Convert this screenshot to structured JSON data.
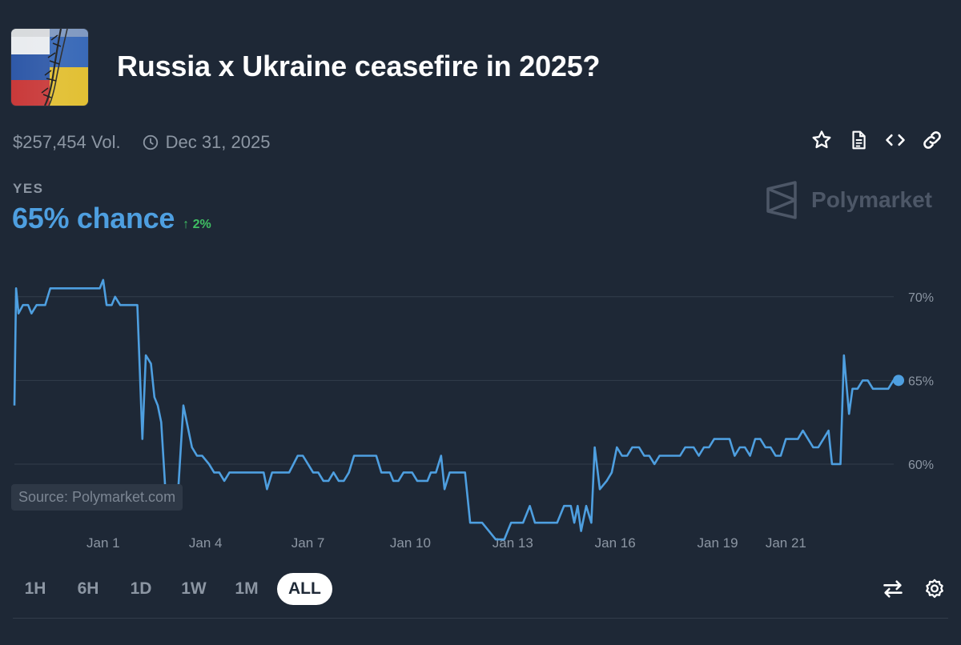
{
  "market": {
    "title": "Russia x Ukraine ceasefire in 2025?",
    "volume": "$257,454 Vol.",
    "end_date": "Dec 31, 2025"
  },
  "outcome": {
    "label": "YES",
    "chance": "65% chance",
    "delta": "2%",
    "delta_direction": "up"
  },
  "brand": {
    "name": "Polymarket"
  },
  "source": "Source: Polymarket.com",
  "icons": {
    "clock": "clock-icon",
    "actions": [
      "star-icon",
      "document-icon",
      "embed-code-icon",
      "link-icon"
    ],
    "tools": [
      "swap-arrows-icon",
      "gear-icon"
    ]
  },
  "ranges": [
    "1H",
    "6H",
    "1D",
    "1W",
    "1M",
    "ALL"
  ],
  "active_range": "ALL",
  "colors": {
    "background": "#1e2836",
    "line": "#4e9fe0",
    "delta_up": "#3fbf63",
    "muted": "#8c96a3"
  },
  "chart_data": {
    "type": "line",
    "title": "",
    "xlabel": "",
    "ylabel": "",
    "ylim": [
      54.5,
      73
    ],
    "y_ticks": [
      60,
      65,
      70
    ],
    "y_tick_labels": [
      "60%",
      "65%",
      "70%"
    ],
    "x_ticks": [
      1,
      4,
      7,
      10,
      13,
      16,
      19,
      21
    ],
    "x_tick_labels": [
      "Jan 1",
      "Jan 4",
      "Jan 7",
      "Jan 10",
      "Jan 13",
      "Jan 16",
      "Jan 19",
      "Jan 21"
    ],
    "x_unit": "day of January (fractional)",
    "grid": "horizontal",
    "series": [
      {
        "values_pct": [
          [
            -1.6,
            63.5
          ],
          [
            -1.55,
            70.5
          ],
          [
            -1.48,
            69
          ],
          [
            -1.35,
            69.5
          ],
          [
            -1.2,
            69.5
          ],
          [
            -1.1,
            69
          ],
          [
            -0.95,
            69.5
          ],
          [
            -0.7,
            69.5
          ],
          [
            -0.55,
            70.5
          ],
          [
            0.0,
            70.5
          ],
          [
            0.5,
            70.5
          ],
          [
            0.9,
            70.5
          ],
          [
            1.0,
            71
          ],
          [
            1.1,
            69.5
          ],
          [
            1.25,
            69.5
          ],
          [
            1.35,
            70
          ],
          [
            1.5,
            69.5
          ],
          [
            1.9,
            69.5
          ],
          [
            2.0,
            69.5
          ],
          [
            2.15,
            61.5
          ],
          [
            2.25,
            66.5
          ],
          [
            2.4,
            66
          ],
          [
            2.5,
            64
          ],
          [
            2.6,
            63.5
          ],
          [
            2.7,
            62.5
          ],
          [
            2.85,
            57.5
          ],
          [
            2.95,
            58
          ],
          [
            3.05,
            57.5
          ],
          [
            3.2,
            58.5
          ],
          [
            3.35,
            63.5
          ],
          [
            3.5,
            62
          ],
          [
            3.6,
            61
          ],
          [
            3.75,
            60.5
          ],
          [
            3.9,
            60.5
          ],
          [
            4.1,
            60
          ],
          [
            4.25,
            59.5
          ],
          [
            4.4,
            59.5
          ],
          [
            4.55,
            59
          ],
          [
            4.7,
            59.5
          ],
          [
            5.0,
            59.5
          ],
          [
            5.3,
            59.5
          ],
          [
            5.7,
            59.5
          ],
          [
            5.8,
            58.5
          ],
          [
            5.95,
            59.5
          ],
          [
            6.3,
            59.5
          ],
          [
            6.45,
            59.5
          ],
          [
            6.7,
            60.5
          ],
          [
            6.85,
            60.5
          ],
          [
            7.0,
            60
          ],
          [
            7.15,
            59.5
          ],
          [
            7.3,
            59.5
          ],
          [
            7.45,
            59
          ],
          [
            7.6,
            59
          ],
          [
            7.75,
            59.5
          ],
          [
            7.9,
            59
          ],
          [
            8.05,
            59
          ],
          [
            8.2,
            59.5
          ],
          [
            8.35,
            60.5
          ],
          [
            8.6,
            60.5
          ],
          [
            8.8,
            60.5
          ],
          [
            9.0,
            60.5
          ],
          [
            9.15,
            59.5
          ],
          [
            9.4,
            59.5
          ],
          [
            9.5,
            59
          ],
          [
            9.65,
            59
          ],
          [
            9.8,
            59.5
          ],
          [
            10.05,
            59.5
          ],
          [
            10.2,
            59
          ],
          [
            10.5,
            59
          ],
          [
            10.6,
            59.5
          ],
          [
            10.75,
            59.5
          ],
          [
            10.9,
            60.5
          ],
          [
            11.0,
            58.5
          ],
          [
            11.15,
            59.5
          ],
          [
            11.5,
            59.5
          ],
          [
            11.6,
            59.5
          ],
          [
            11.75,
            56.5
          ],
          [
            12.1,
            56.5
          ],
          [
            12.3,
            56
          ],
          [
            12.5,
            55.5
          ],
          [
            12.75,
            55.5
          ],
          [
            12.95,
            56.5
          ],
          [
            13.0,
            56.5
          ],
          [
            13.3,
            56.5
          ],
          [
            13.5,
            57.5
          ],
          [
            13.65,
            56.5
          ],
          [
            13.85,
            56.5
          ],
          [
            14.05,
            56.5
          ],
          [
            14.3,
            56.5
          ],
          [
            14.5,
            57.5
          ],
          [
            14.7,
            57.5
          ],
          [
            14.8,
            56.5
          ],
          [
            14.9,
            57.5
          ],
          [
            15.0,
            56
          ],
          [
            15.15,
            57.5
          ],
          [
            15.3,
            56.5
          ],
          [
            15.4,
            61
          ],
          [
            15.55,
            58.5
          ],
          [
            15.75,
            59
          ],
          [
            15.9,
            59.5
          ],
          [
            16.05,
            61
          ],
          [
            16.2,
            60.5
          ],
          [
            16.35,
            60.5
          ],
          [
            16.5,
            61
          ],
          [
            16.7,
            61
          ],
          [
            16.85,
            60.5
          ],
          [
            17.0,
            60.5
          ],
          [
            17.15,
            60
          ],
          [
            17.3,
            60.5
          ],
          [
            17.6,
            60.5
          ],
          [
            17.9,
            60.5
          ],
          [
            18.05,
            61
          ],
          [
            18.3,
            61
          ],
          [
            18.45,
            60.5
          ],
          [
            18.6,
            61
          ],
          [
            18.75,
            61
          ],
          [
            18.9,
            61.5
          ],
          [
            19.2,
            61.5
          ],
          [
            19.35,
            61.5
          ],
          [
            19.5,
            60.5
          ],
          [
            19.65,
            61
          ],
          [
            19.8,
            61
          ],
          [
            19.95,
            60.5
          ],
          [
            20.1,
            61.5
          ],
          [
            20.25,
            61.5
          ],
          [
            20.4,
            61
          ],
          [
            20.55,
            61
          ],
          [
            20.7,
            60.5
          ],
          [
            20.85,
            60.5
          ],
          [
            21.0,
            61.5
          ],
          [
            21.2,
            61.5
          ],
          [
            21.35,
            61.5
          ],
          [
            21.5,
            62
          ],
          [
            21.65,
            61.5
          ],
          [
            21.8,
            61
          ],
          [
            21.95,
            61
          ],
          [
            22.1,
            61.5
          ],
          [
            22.25,
            62
          ],
          [
            22.35,
            60
          ],
          [
            22.5,
            60
          ],
          [
            22.6,
            60
          ],
          [
            22.7,
            66.5
          ],
          [
            22.85,
            63
          ],
          [
            22.95,
            64.5
          ],
          [
            23.1,
            64.5
          ],
          [
            23.25,
            65
          ],
          [
            23.4,
            65
          ],
          [
            23.55,
            64.5
          ],
          [
            23.7,
            64.5
          ],
          [
            23.85,
            64.5
          ],
          [
            24.0,
            64.5
          ],
          [
            24.15,
            65
          ],
          [
            24.3,
            65
          ]
        ],
        "last_value": 65
      }
    ]
  }
}
